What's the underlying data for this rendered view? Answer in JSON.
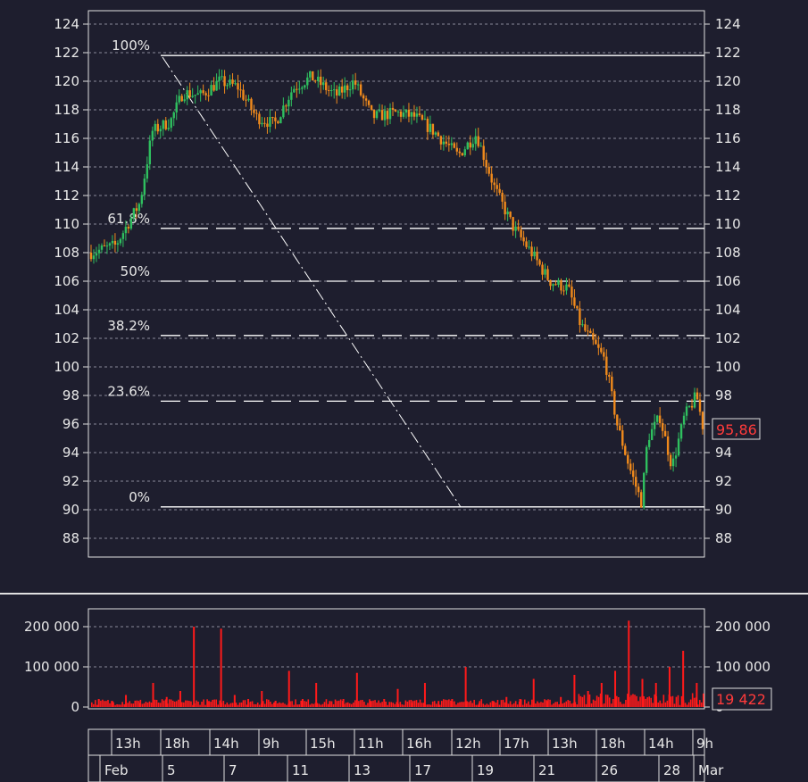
{
  "price_chart": {
    "y_ticks": [
      "124",
      "122",
      "120",
      "118",
      "116",
      "114",
      "112",
      "110",
      "108",
      "106",
      "104",
      "102",
      "100",
      "98",
      "96",
      "94",
      "92",
      "90",
      "88"
    ],
    "last_price_label": "95,86",
    "fib_levels": [
      {
        "label": "100%",
        "value": 121.8
      },
      {
        "label": "61.8%",
        "value": 109.7
      },
      {
        "label": "50%",
        "value": 106.0
      },
      {
        "label": "38.2%",
        "value": 102.2
      },
      {
        "label": "23.6%",
        "value": 97.6
      },
      {
        "label": "0%",
        "value": 90.2
      }
    ]
  },
  "volume_chart": {
    "y_ticks": [
      "200 000",
      "100 000",
      "0"
    ],
    "last_volume_label": "19 422"
  },
  "time_axis": {
    "hours": [
      "13h",
      "18h",
      "14h",
      "9h",
      "15h",
      "11h",
      "16h",
      "12h",
      "17h",
      "13h",
      "18h",
      "14h",
      "9h"
    ],
    "days": [
      "Feb",
      "5",
      "7",
      "11",
      "13",
      "17",
      "19",
      "21",
      "26",
      "28",
      "Mar"
    ]
  },
  "colors": {
    "background": "#1e1e2e",
    "up": "#2fbf5f",
    "down": "#f08a1c",
    "volume": "#ff1a1a",
    "last_label": "#ff3b3b",
    "text": "#e8e8e8"
  },
  "chart_data": [
    {
      "type": "line",
      "title": "",
      "ylabel": "",
      "ylim": [
        87,
        125
      ],
      "x": [
        0,
        0.04,
        0.08,
        0.1,
        0.13,
        0.15,
        0.18,
        0.21,
        0.24,
        0.27,
        0.3,
        0.33,
        0.36,
        0.4,
        0.43,
        0.46,
        0.5,
        0.53,
        0.56,
        0.6,
        0.63,
        0.66,
        0.69,
        0.72,
        0.75,
        0.78,
        0.8,
        0.84,
        0.86,
        0.88,
        0.9,
        0.91,
        0.93,
        0.95,
        0.97,
        0.99,
        1.0
      ],
      "series": [
        {
          "values": [
            108,
            108.5,
            111.5,
            116.5,
            117.2,
            119.2,
            119,
            120,
            119.6,
            117.5,
            117,
            119.5,
            120.3,
            119,
            120,
            117.5,
            117.8,
            117.5,
            116.5,
            114.8,
            116.3,
            112.5,
            109.8,
            108,
            106,
            105.5,
            103,
            100.5,
            96,
            93,
            90.5,
            95,
            96.5,
            93,
            96.5,
            98,
            95.9
          ]
        }
      ]
    },
    {
      "type": "bar",
      "title": "",
      "ylabel": "",
      "ylim": [
        0,
        230000
      ],
      "series": [
        {
          "values": [
            20000,
            15000,
            30000,
            10000,
            60000,
            25000,
            40000,
            200000,
            15000,
            195000,
            30000,
            20000,
            40000,
            15000,
            90000,
            20000,
            60000,
            15000,
            20000,
            85000,
            15000,
            20000,
            45000,
            10000,
            60000,
            15000,
            20000,
            100000,
            10000,
            15000,
            25000,
            20000,
            70000,
            15000,
            25000,
            80000,
            40000,
            60000,
            90000,
            215000,
            70000,
            60000,
            100000,
            140000,
            60000
          ]
        }
      ]
    }
  ]
}
